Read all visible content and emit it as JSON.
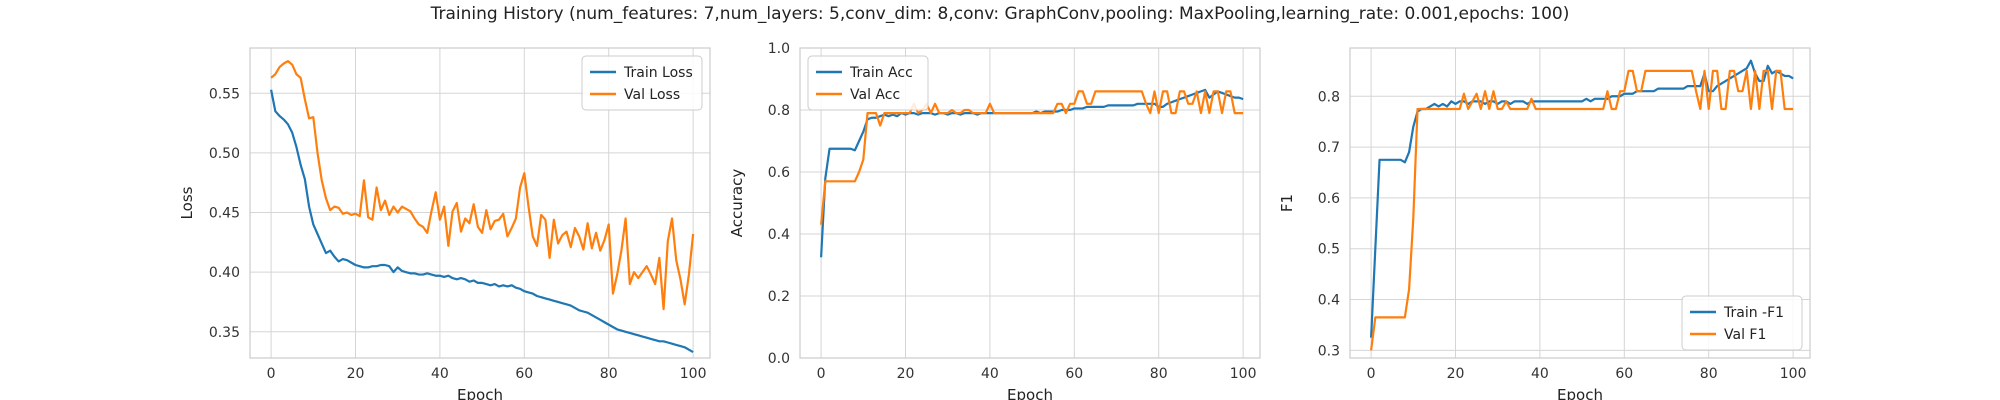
{
  "figure": {
    "title": "Training History (num_features: 7,num_layers: 5,conv_dim: 8,conv: GraphConv,pooling: MaxPooling,learning_rate: 0.001,epochs: 100)"
  },
  "colors": {
    "train": "#1f77b4",
    "val": "#ff7f0e",
    "grid": "#d5d5d5",
    "spine": "#cccccc"
  },
  "chart_data": [
    {
      "type": "line",
      "xlabel": "Epoch",
      "ylabel": "Loss",
      "xlim": [
        -5,
        104
      ],
      "ylim": [
        0.328,
        0.588
      ],
      "xticks": [
        0,
        20,
        40,
        60,
        80,
        100
      ],
      "yticks": [
        0.35,
        0.4,
        0.45,
        0.5,
        0.55
      ],
      "ytick_labels": [
        "0.35",
        "0.40",
        "0.45",
        "0.50",
        "0.55"
      ],
      "legend": "top-right",
      "grid": true,
      "series": [
        {
          "name": "Train Loss",
          "color": "#1f77b4",
          "y": [
            0.553,
            0.535,
            0.531,
            0.528,
            0.524,
            0.517,
            0.505,
            0.49,
            0.478,
            0.455,
            0.44,
            0.432,
            0.424,
            0.416,
            0.418,
            0.413,
            0.409,
            0.411,
            0.41,
            0.408,
            0.406,
            0.405,
            0.404,
            0.404,
            0.405,
            0.405,
            0.406,
            0.406,
            0.405,
            0.4,
            0.404,
            0.401,
            0.4,
            0.399,
            0.399,
            0.398,
            0.398,
            0.399,
            0.398,
            0.397,
            0.397,
            0.396,
            0.397,
            0.395,
            0.394,
            0.395,
            0.394,
            0.392,
            0.393,
            0.391,
            0.391,
            0.39,
            0.389,
            0.39,
            0.388,
            0.389,
            0.388,
            0.389,
            0.387,
            0.386,
            0.384,
            0.383,
            0.382,
            0.38,
            0.379,
            0.378,
            0.377,
            0.376,
            0.375,
            0.374,
            0.373,
            0.372,
            0.37,
            0.368,
            0.367,
            0.366,
            0.364,
            0.362,
            0.36,
            0.358,
            0.356,
            0.354,
            0.352,
            0.351,
            0.35,
            0.349,
            0.348,
            0.347,
            0.346,
            0.345,
            0.344,
            0.343,
            0.342,
            0.342,
            0.341,
            0.34,
            0.339,
            0.338,
            0.337,
            0.335,
            0.333
          ]
        },
        {
          "name": "Val Loss",
          "color": "#ff7f0e",
          "y": [
            0.563,
            0.566,
            0.572,
            0.575,
            0.577,
            0.574,
            0.566,
            0.563,
            0.545,
            0.529,
            0.53,
            0.5,
            0.477,
            0.462,
            0.452,
            0.455,
            0.454,
            0.449,
            0.45,
            0.448,
            0.449,
            0.447,
            0.477,
            0.446,
            0.444,
            0.471,
            0.452,
            0.46,
            0.448,
            0.455,
            0.45,
            0.455,
            0.453,
            0.451,
            0.445,
            0.44,
            0.438,
            0.433,
            0.451,
            0.467,
            0.444,
            0.455,
            0.422,
            0.451,
            0.458,
            0.434,
            0.445,
            0.441,
            0.457,
            0.438,
            0.433,
            0.452,
            0.436,
            0.443,
            0.444,
            0.449,
            0.43,
            0.437,
            0.445,
            0.471,
            0.483,
            0.455,
            0.43,
            0.422,
            0.448,
            0.444,
            0.412,
            0.444,
            0.424,
            0.431,
            0.434,
            0.421,
            0.437,
            0.43,
            0.419,
            0.441,
            0.42,
            0.433,
            0.418,
            0.427,
            0.44,
            0.382,
            0.398,
            0.418,
            0.445,
            0.39,
            0.4,
            0.395,
            0.4,
            0.405,
            0.398,
            0.39,
            0.412,
            0.369,
            0.426,
            0.445,
            0.41,
            0.394,
            0.373,
            0.398,
            0.432
          ]
        }
      ]
    },
    {
      "type": "line",
      "xlabel": "Epoch",
      "ylabel": "Accuracy",
      "xlim": [
        -5,
        104
      ],
      "ylim": [
        0.0,
        1.0
      ],
      "xticks": [
        0,
        20,
        40,
        60,
        80,
        100
      ],
      "yticks": [
        0.0,
        0.2,
        0.4,
        0.6,
        0.8,
        1.0
      ],
      "ytick_labels": [
        "0.0",
        "0.2",
        "0.4",
        "0.6",
        "0.8",
        "1.0"
      ],
      "legend": "top-left",
      "grid": true,
      "series": [
        {
          "name": "Train Acc",
          "color": "#1f77b4",
          "y": [
            0.325,
            0.58,
            0.675,
            0.675,
            0.675,
            0.675,
            0.675,
            0.675,
            0.67,
            0.7,
            0.73,
            0.77,
            0.775,
            0.775,
            0.78,
            0.785,
            0.78,
            0.785,
            0.78,
            0.79,
            0.785,
            0.79,
            0.79,
            0.785,
            0.79,
            0.79,
            0.79,
            0.785,
            0.79,
            0.79,
            0.785,
            0.79,
            0.79,
            0.785,
            0.79,
            0.79,
            0.79,
            0.785,
            0.79,
            0.79,
            0.79,
            0.79,
            0.79,
            0.79,
            0.79,
            0.79,
            0.79,
            0.79,
            0.79,
            0.79,
            0.79,
            0.795,
            0.79,
            0.795,
            0.795,
            0.795,
            0.795,
            0.8,
            0.8,
            0.8,
            0.805,
            0.805,
            0.805,
            0.81,
            0.81,
            0.81,
            0.81,
            0.81,
            0.815,
            0.815,
            0.815,
            0.815,
            0.815,
            0.815,
            0.815,
            0.82,
            0.82,
            0.82,
            0.82,
            0.82,
            0.81,
            0.81,
            0.82,
            0.825,
            0.83,
            0.835,
            0.84,
            0.845,
            0.85,
            0.855,
            0.86,
            0.865,
            0.84,
            0.85,
            0.86,
            0.855,
            0.85,
            0.845,
            0.84,
            0.84,
            0.835
          ]
        },
        {
          "name": "Val Acc",
          "color": "#ff7f0e",
          "y": [
            0.43,
            0.57,
            0.57,
            0.57,
            0.57,
            0.57,
            0.57,
            0.57,
            0.57,
            0.6,
            0.64,
            0.79,
            0.79,
            0.79,
            0.75,
            0.79,
            0.79,
            0.79,
            0.79,
            0.79,
            0.79,
            0.79,
            0.82,
            0.79,
            0.8,
            0.82,
            0.79,
            0.82,
            0.79,
            0.79,
            0.79,
            0.8,
            0.79,
            0.79,
            0.8,
            0.8,
            0.79,
            0.79,
            0.79,
            0.79,
            0.82,
            0.79,
            0.79,
            0.79,
            0.79,
            0.79,
            0.79,
            0.79,
            0.79,
            0.79,
            0.79,
            0.79,
            0.79,
            0.79,
            0.79,
            0.79,
            0.82,
            0.82,
            0.79,
            0.82,
            0.82,
            0.86,
            0.86,
            0.82,
            0.82,
            0.86,
            0.86,
            0.86,
            0.86,
            0.86,
            0.86,
            0.86,
            0.86,
            0.86,
            0.86,
            0.86,
            0.86,
            0.82,
            0.79,
            0.86,
            0.79,
            0.86,
            0.86,
            0.79,
            0.79,
            0.86,
            0.86,
            0.82,
            0.82,
            0.86,
            0.79,
            0.86,
            0.79,
            0.86,
            0.86,
            0.79,
            0.86,
            0.86,
            0.79,
            0.79,
            0.79
          ]
        }
      ]
    },
    {
      "type": "line",
      "xlabel": "Epoch",
      "ylabel": "F1",
      "xlim": [
        -5,
        104
      ],
      "ylim": [
        0.285,
        0.895
      ],
      "xticks": [
        0,
        20,
        40,
        60,
        80,
        100
      ],
      "yticks": [
        0.3,
        0.4,
        0.5,
        0.6,
        0.7,
        0.8
      ],
      "ytick_labels": [
        "0.3",
        "0.4",
        "0.5",
        "0.6",
        "0.7",
        "0.8"
      ],
      "legend": "bottom-right",
      "grid": true,
      "series": [
        {
          "name": "Train -F1",
          "color": "#1f77b4",
          "y": [
            0.325,
            0.5,
            0.675,
            0.675,
            0.675,
            0.675,
            0.675,
            0.675,
            0.67,
            0.69,
            0.74,
            0.77,
            0.775,
            0.775,
            0.78,
            0.785,
            0.78,
            0.785,
            0.78,
            0.79,
            0.785,
            0.79,
            0.79,
            0.785,
            0.79,
            0.79,
            0.79,
            0.785,
            0.79,
            0.79,
            0.785,
            0.79,
            0.79,
            0.785,
            0.79,
            0.79,
            0.79,
            0.785,
            0.79,
            0.79,
            0.79,
            0.79,
            0.79,
            0.79,
            0.79,
            0.79,
            0.79,
            0.79,
            0.79,
            0.79,
            0.79,
            0.795,
            0.79,
            0.795,
            0.795,
            0.795,
            0.795,
            0.8,
            0.8,
            0.8,
            0.805,
            0.805,
            0.805,
            0.81,
            0.81,
            0.81,
            0.81,
            0.81,
            0.815,
            0.815,
            0.815,
            0.815,
            0.815,
            0.815,
            0.815,
            0.82,
            0.82,
            0.82,
            0.82,
            0.845,
            0.81,
            0.81,
            0.82,
            0.825,
            0.83,
            0.835,
            0.84,
            0.845,
            0.85,
            0.855,
            0.87,
            0.845,
            0.83,
            0.83,
            0.86,
            0.845,
            0.85,
            0.845,
            0.84,
            0.84,
            0.835
          ]
        },
        {
          "name": "Val F1",
          "color": "#ff7f0e",
          "y": [
            0.3,
            0.365,
            0.365,
            0.365,
            0.365,
            0.365,
            0.365,
            0.365,
            0.365,
            0.42,
            0.56,
            0.775,
            0.775,
            0.775,
            0.775,
            0.775,
            0.775,
            0.775,
            0.775,
            0.775,
            0.775,
            0.775,
            0.805,
            0.775,
            0.79,
            0.805,
            0.775,
            0.81,
            0.775,
            0.81,
            0.775,
            0.775,
            0.79,
            0.775,
            0.775,
            0.775,
            0.775,
            0.775,
            0.795,
            0.775,
            0.775,
            0.775,
            0.775,
            0.775,
            0.775,
            0.775,
            0.775,
            0.775,
            0.775,
            0.775,
            0.775,
            0.775,
            0.775,
            0.775,
            0.775,
            0.775,
            0.81,
            0.775,
            0.775,
            0.81,
            0.81,
            0.85,
            0.85,
            0.81,
            0.81,
            0.85,
            0.85,
            0.85,
            0.85,
            0.85,
            0.85,
            0.85,
            0.85,
            0.85,
            0.85,
            0.85,
            0.85,
            0.81,
            0.775,
            0.85,
            0.775,
            0.85,
            0.85,
            0.775,
            0.775,
            0.85,
            0.85,
            0.81,
            0.81,
            0.85,
            0.775,
            0.85,
            0.775,
            0.85,
            0.85,
            0.775,
            0.85,
            0.85,
            0.775,
            0.775,
            0.775
          ]
        }
      ]
    }
  ]
}
